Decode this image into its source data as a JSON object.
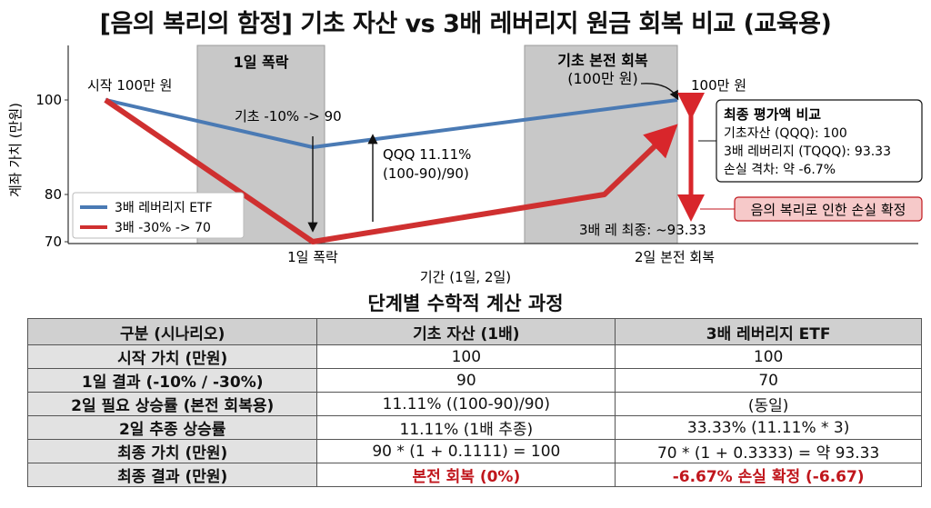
{
  "title": "[음의 복리의 함정] 기초 자산 vs 3배 레버리지 원금 회복 비교 (교육용)",
  "chart_data": {
    "type": "line",
    "ylabel": "계좌 가치 (만원)",
    "xlabel": "기간 (1일, 2일)",
    "y_ticks": [
      100,
      80,
      70
    ],
    "x_tick_labels": [
      "1일 폭락",
      "2일 본전 회복"
    ],
    "series": [
      {
        "name": "3배 레버리지 ETF",
        "color": "#4a7ab4",
        "x": [
          0,
          1,
          2
        ],
        "values": [
          100,
          90,
          100
        ]
      },
      {
        "name": "3배 -30% -> 70",
        "color": "#cf3030",
        "x": [
          0,
          1,
          1.8,
          2
        ],
        "values": [
          100,
          70,
          80,
          93.33
        ]
      }
    ],
    "shaded_regions": [
      {
        "label": "1일 폭락"
      },
      {
        "label": "기초 본전 회복",
        "label2": "(100만 원)"
      }
    ],
    "annotations": {
      "start": "시작 100만 원",
      "base_drop": "기초 -10% -> 90",
      "qqq_gain_1": "QQQ 11.11%",
      "qqq_gain_2": "(100-90)/90)",
      "end_100": "100만 원",
      "lev_final": "3배 레 최종: ~93.33",
      "loss_box": "음의 복리로 인한 손실 확정"
    },
    "final_box": {
      "title": "최종 평가액 비교",
      "line1": "기초자산 (QQQ): 100",
      "line2": "3배 레버리지 (TQQQ): 93.33",
      "line3": "손실 격차: 약 -6.7%"
    }
  },
  "table": {
    "title": "단계별 수학적 계산 과정",
    "headers": [
      "구분 (시나리오)",
      "기초 자산 (1배)",
      "3배 레버리지 ETF"
    ],
    "rows": [
      [
        "시작 가치 (만원)",
        "100",
        "100"
      ],
      [
        "1일 결과 (-10% / -30%)",
        "90",
        "70"
      ],
      [
        "2일 필요 상승률 (본전 회복용)",
        "11.11% ((100-90)/90)",
        "(동일)"
      ],
      [
        "2일 추종 상승률",
        "11.11% (1배 추종)",
        "33.33% (11.11% * 3)"
      ],
      [
        "최종 가치 (만원)",
        "90 * (1 + 0.1111) = 100",
        "70 * (1 + 0.3333) = 약 93.33"
      ],
      [
        "최종 결과 (만원)",
        "본전 회복 (0%)",
        "-6.67% 손실 확정 (-6.67)"
      ]
    ]
  }
}
